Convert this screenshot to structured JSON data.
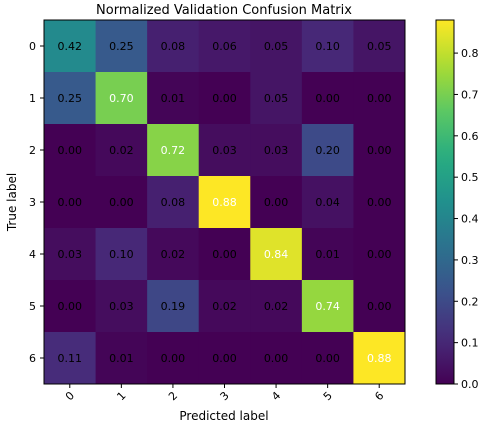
{
  "chart_data": {
    "type": "heatmap",
    "title": "Normalized Validation Confusion Matrix",
    "xlabel": "Predicted label",
    "ylabel": "True label",
    "x_tick_labels": [
      "0",
      "1",
      "2",
      "3",
      "4",
      "5",
      "6"
    ],
    "y_tick_labels": [
      "0",
      "1",
      "2",
      "3",
      "4",
      "5",
      "6"
    ],
    "values": [
      [
        0.42,
        0.25,
        0.08,
        0.06,
        0.05,
        0.1,
        0.05
      ],
      [
        0.25,
        0.7,
        0.01,
        0.0,
        0.05,
        0.0,
        0.0
      ],
      [
        0.0,
        0.02,
        0.72,
        0.03,
        0.03,
        0.2,
        0.0
      ],
      [
        0.0,
        0.0,
        0.08,
        0.88,
        0.0,
        0.04,
        0.0
      ],
      [
        0.03,
        0.1,
        0.02,
        0.0,
        0.84,
        0.01,
        0.0
      ],
      [
        0.0,
        0.03,
        0.19,
        0.02,
        0.02,
        0.74,
        0.0
      ],
      [
        0.11,
        0.01,
        0.0,
        0.0,
        0.0,
        0.0,
        0.88
      ]
    ],
    "colormap": "viridis",
    "vmin": 0.0,
    "vmax": 0.88,
    "colorbar_ticks": [
      "0.0",
      "0.1",
      "0.2",
      "0.3",
      "0.4",
      "0.5",
      "0.6",
      "0.7",
      "0.8"
    ],
    "annotation_format": "2dp"
  }
}
